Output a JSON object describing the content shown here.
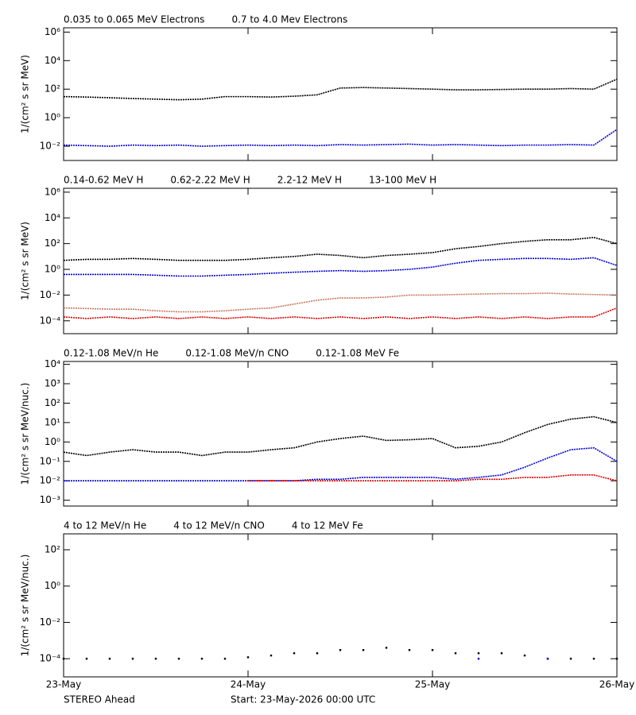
{
  "chart_data": [
    {
      "type": "line",
      "log_scale": true,
      "ylabel": "1/(cm² s sr MeV)",
      "x": [
        0,
        3,
        6,
        9,
        12,
        15,
        18,
        21,
        24,
        27,
        30,
        33,
        36,
        39,
        42,
        45,
        48,
        51,
        54,
        57,
        60,
        63,
        66,
        69,
        72
      ],
      "xlim": [
        0,
        72
      ],
      "ylim": [
        0.001,
        2000000
      ],
      "yticks": [
        {
          "value": 0.01,
          "label": "10⁻²"
        },
        {
          "value": 1,
          "label": "10⁰"
        },
        {
          "value": 100,
          "label": "10²"
        },
        {
          "value": 10000,
          "label": "10⁴"
        },
        {
          "value": 1000000,
          "label": "10⁶"
        }
      ],
      "series": [
        {
          "name": "0.035 to 0.065 MeV Electrons",
          "color": "#000000",
          "values": [
            30,
            28,
            25,
            22,
            20,
            18,
            20,
            30,
            30,
            28,
            32,
            40,
            120,
            130,
            120,
            110,
            100,
            90,
            90,
            95,
            100,
            100,
            110,
            100,
            500
          ]
        },
        {
          "name": "0.7 to 4.0 Mev Electrons",
          "color": "#0000dd",
          "values": [
            0.012,
            0.011,
            0.01,
            0.012,
            0.011,
            0.012,
            0.01,
            0.011,
            0.012,
            0.011,
            0.012,
            0.011,
            0.013,
            0.012,
            0.013,
            0.014,
            0.012,
            0.013,
            0.012,
            0.011,
            0.012,
            0.012,
            0.013,
            0.012,
            0.15
          ]
        }
      ]
    },
    {
      "type": "line",
      "log_scale": true,
      "ylabel": "1/(cm² s sr MeV)",
      "x": [
        0,
        3,
        6,
        9,
        12,
        15,
        18,
        21,
        24,
        27,
        30,
        33,
        36,
        39,
        42,
        45,
        48,
        51,
        54,
        57,
        60,
        63,
        66,
        69,
        72
      ],
      "xlim": [
        0,
        72
      ],
      "ylim": [
        1e-05,
        2000000
      ],
      "yticks": [
        {
          "value": 0.0001,
          "label": "10⁻⁴"
        },
        {
          "value": 0.01,
          "label": "10⁻²"
        },
        {
          "value": 1,
          "label": "10⁰"
        },
        {
          "value": 100,
          "label": "10²"
        },
        {
          "value": 10000,
          "label": "10⁴"
        },
        {
          "value": 1000000,
          "label": "10⁶"
        }
      ],
      "series": [
        {
          "name": "0.14-0.62 MeV H",
          "color": "#000000",
          "values": [
            5,
            6,
            6,
            7,
            6,
            5,
            5,
            5,
            6,
            8,
            10,
            15,
            12,
            8,
            12,
            15,
            20,
            40,
            60,
            100,
            150,
            200,
            200,
            300,
            100
          ]
        },
        {
          "name": "0.62-2.22 MeV H",
          "color": "#0000dd",
          "values": [
            0.4,
            0.4,
            0.4,
            0.4,
            0.35,
            0.3,
            0.3,
            0.35,
            0.4,
            0.5,
            0.6,
            0.7,
            0.8,
            0.7,
            0.8,
            1,
            1.5,
            3,
            5,
            6,
            7,
            7,
            6,
            8,
            2
          ]
        },
        {
          "name": "2.2-12 MeV H",
          "color": "#c87860",
          "values": [
            0.001,
            0.0009,
            0.0008,
            0.0008,
            0.0006,
            0.0005,
            0.0005,
            0.0006,
            0.0008,
            0.001,
            0.002,
            0.004,
            0.006,
            0.006,
            0.007,
            0.01,
            0.01,
            0.011,
            0.012,
            0.013,
            0.013,
            0.014,
            0.012,
            0.011,
            0.01
          ]
        },
        {
          "name": "13-100 MeV H",
          "color": "#dd0000",
          "values": [
            0.0002,
            0.00015,
            0.0002,
            0.00015,
            0.0002,
            0.00015,
            0.0002,
            0.00015,
            0.0002,
            0.00015,
            0.0002,
            0.00015,
            0.0002,
            0.00015,
            0.0002,
            0.00015,
            0.0002,
            0.00015,
            0.0002,
            0.00015,
            0.0002,
            0.00015,
            0.0002,
            0.0002,
            0.001
          ]
        }
      ]
    },
    {
      "type": "line",
      "log_scale": true,
      "ylabel": "1/(cm² s sr MeV/nuc.)",
      "x": [
        0,
        3,
        6,
        9,
        12,
        15,
        18,
        21,
        24,
        27,
        30,
        33,
        36,
        39,
        42,
        45,
        48,
        51,
        54,
        57,
        60,
        63,
        66,
        69,
        72
      ],
      "xlim": [
        0,
        72
      ],
      "ylim": [
        0.0005,
        14000
      ],
      "yticks": [
        {
          "value": 0.001,
          "label": "10⁻³"
        },
        {
          "value": 0.01,
          "label": "10⁻²"
        },
        {
          "value": 0.1,
          "label": "10⁻¹"
        },
        {
          "value": 1,
          "label": "10⁰"
        },
        {
          "value": 10,
          "label": "10¹"
        },
        {
          "value": 100,
          "label": "10²"
        },
        {
          "value": 1000,
          "label": "10³"
        },
        {
          "value": 10000,
          "label": "10⁴"
        }
      ],
      "series": [
        {
          "name": "0.12-1.08 MeV/n He",
          "color": "#000000",
          "values": [
            0.3,
            0.2,
            0.3,
            0.4,
            0.3,
            0.3,
            0.2,
            0.3,
            0.3,
            0.4,
            0.5,
            1,
            1.5,
            2,
            1.2,
            1.3,
            1.5,
            0.5,
            0.6,
            1,
            3,
            8,
            15,
            20,
            10
          ]
        },
        {
          "name": "0.12-1.08 MeV/n CNO",
          "color": "#0000dd",
          "values": [
            0.01,
            0.01,
            0.01,
            0.01,
            0.01,
            0.01,
            0.01,
            0.01,
            0.01,
            0.01,
            0.01,
            0.012,
            0.012,
            0.015,
            0.015,
            0.015,
            0.015,
            0.012,
            0.015,
            0.02,
            0.05,
            0.15,
            0.4,
            0.5,
            0.1
          ]
        },
        {
          "name": "0.12-1.08 MeV Fe",
          "color": "#dd0000",
          "values": [
            null,
            null,
            null,
            null,
            null,
            null,
            null,
            null,
            0.01,
            0.01,
            0.01,
            0.01,
            0.01,
            0.01,
            0.01,
            0.01,
            0.01,
            0.01,
            0.012,
            0.012,
            0.015,
            0.015,
            0.02,
            0.02,
            0.01
          ]
        }
      ]
    },
    {
      "type": "scatter",
      "log_scale": true,
      "ylabel": "1/(cm² s sr MeV/nuc.)",
      "x": [
        0,
        3,
        6,
        9,
        12,
        15,
        18,
        21,
        24,
        27,
        30,
        33,
        36,
        39,
        42,
        45,
        48,
        51,
        54,
        57,
        60,
        63,
        66,
        69,
        72
      ],
      "xlim": [
        0,
        72
      ],
      "ylim": [
        1e-05,
        750
      ],
      "xticks": [
        {
          "value": 0,
          "label": "23-May"
        },
        {
          "value": 24,
          "label": "24-May"
        },
        {
          "value": 48,
          "label": "25-May"
        },
        {
          "value": 72,
          "label": "26-May"
        }
      ],
      "yticks": [
        {
          "value": 0.0001,
          "label": "10⁻⁴"
        },
        {
          "value": 0.01,
          "label": "10⁻²"
        },
        {
          "value": 1,
          "label": "10⁰"
        },
        {
          "value": 100,
          "label": "10²"
        }
      ],
      "series": [
        {
          "name": "4 to 12 MeV/n He",
          "color": "#000000",
          "values": [
            0.0001,
            0.0001,
            0.0001,
            0.0001,
            0.0001,
            0.0001,
            0.0001,
            0.0001,
            0.00012,
            0.00015,
            0.0002,
            0.0002,
            0.0003,
            0.0003,
            0.0004,
            0.0003,
            0.0003,
            0.0002,
            0.0002,
            0.0002,
            0.00015,
            0.0001,
            0.0001,
            0.0001,
            0.0001
          ]
        },
        {
          "name": "4 to 12 MeV/n CNO",
          "color": "#0000dd",
          "values": [
            null,
            null,
            null,
            null,
            null,
            null,
            null,
            null,
            null,
            null,
            null,
            null,
            null,
            null,
            null,
            null,
            null,
            null,
            0.0001,
            null,
            null,
            0.0001,
            null,
            null,
            null
          ]
        },
        {
          "name": "4 to 12 MeV Fe",
          "color": "#dd0000",
          "values": [
            null,
            null,
            null,
            null,
            null,
            null,
            null,
            null,
            null,
            null,
            null,
            null,
            null,
            null,
            null,
            null,
            null,
            null,
            null,
            null,
            null,
            null,
            null,
            null,
            null
          ]
        }
      ]
    }
  ],
  "footer_left": "STEREO Ahead",
  "footer_start": "Start: 23-May-2026 00:00 UTC"
}
